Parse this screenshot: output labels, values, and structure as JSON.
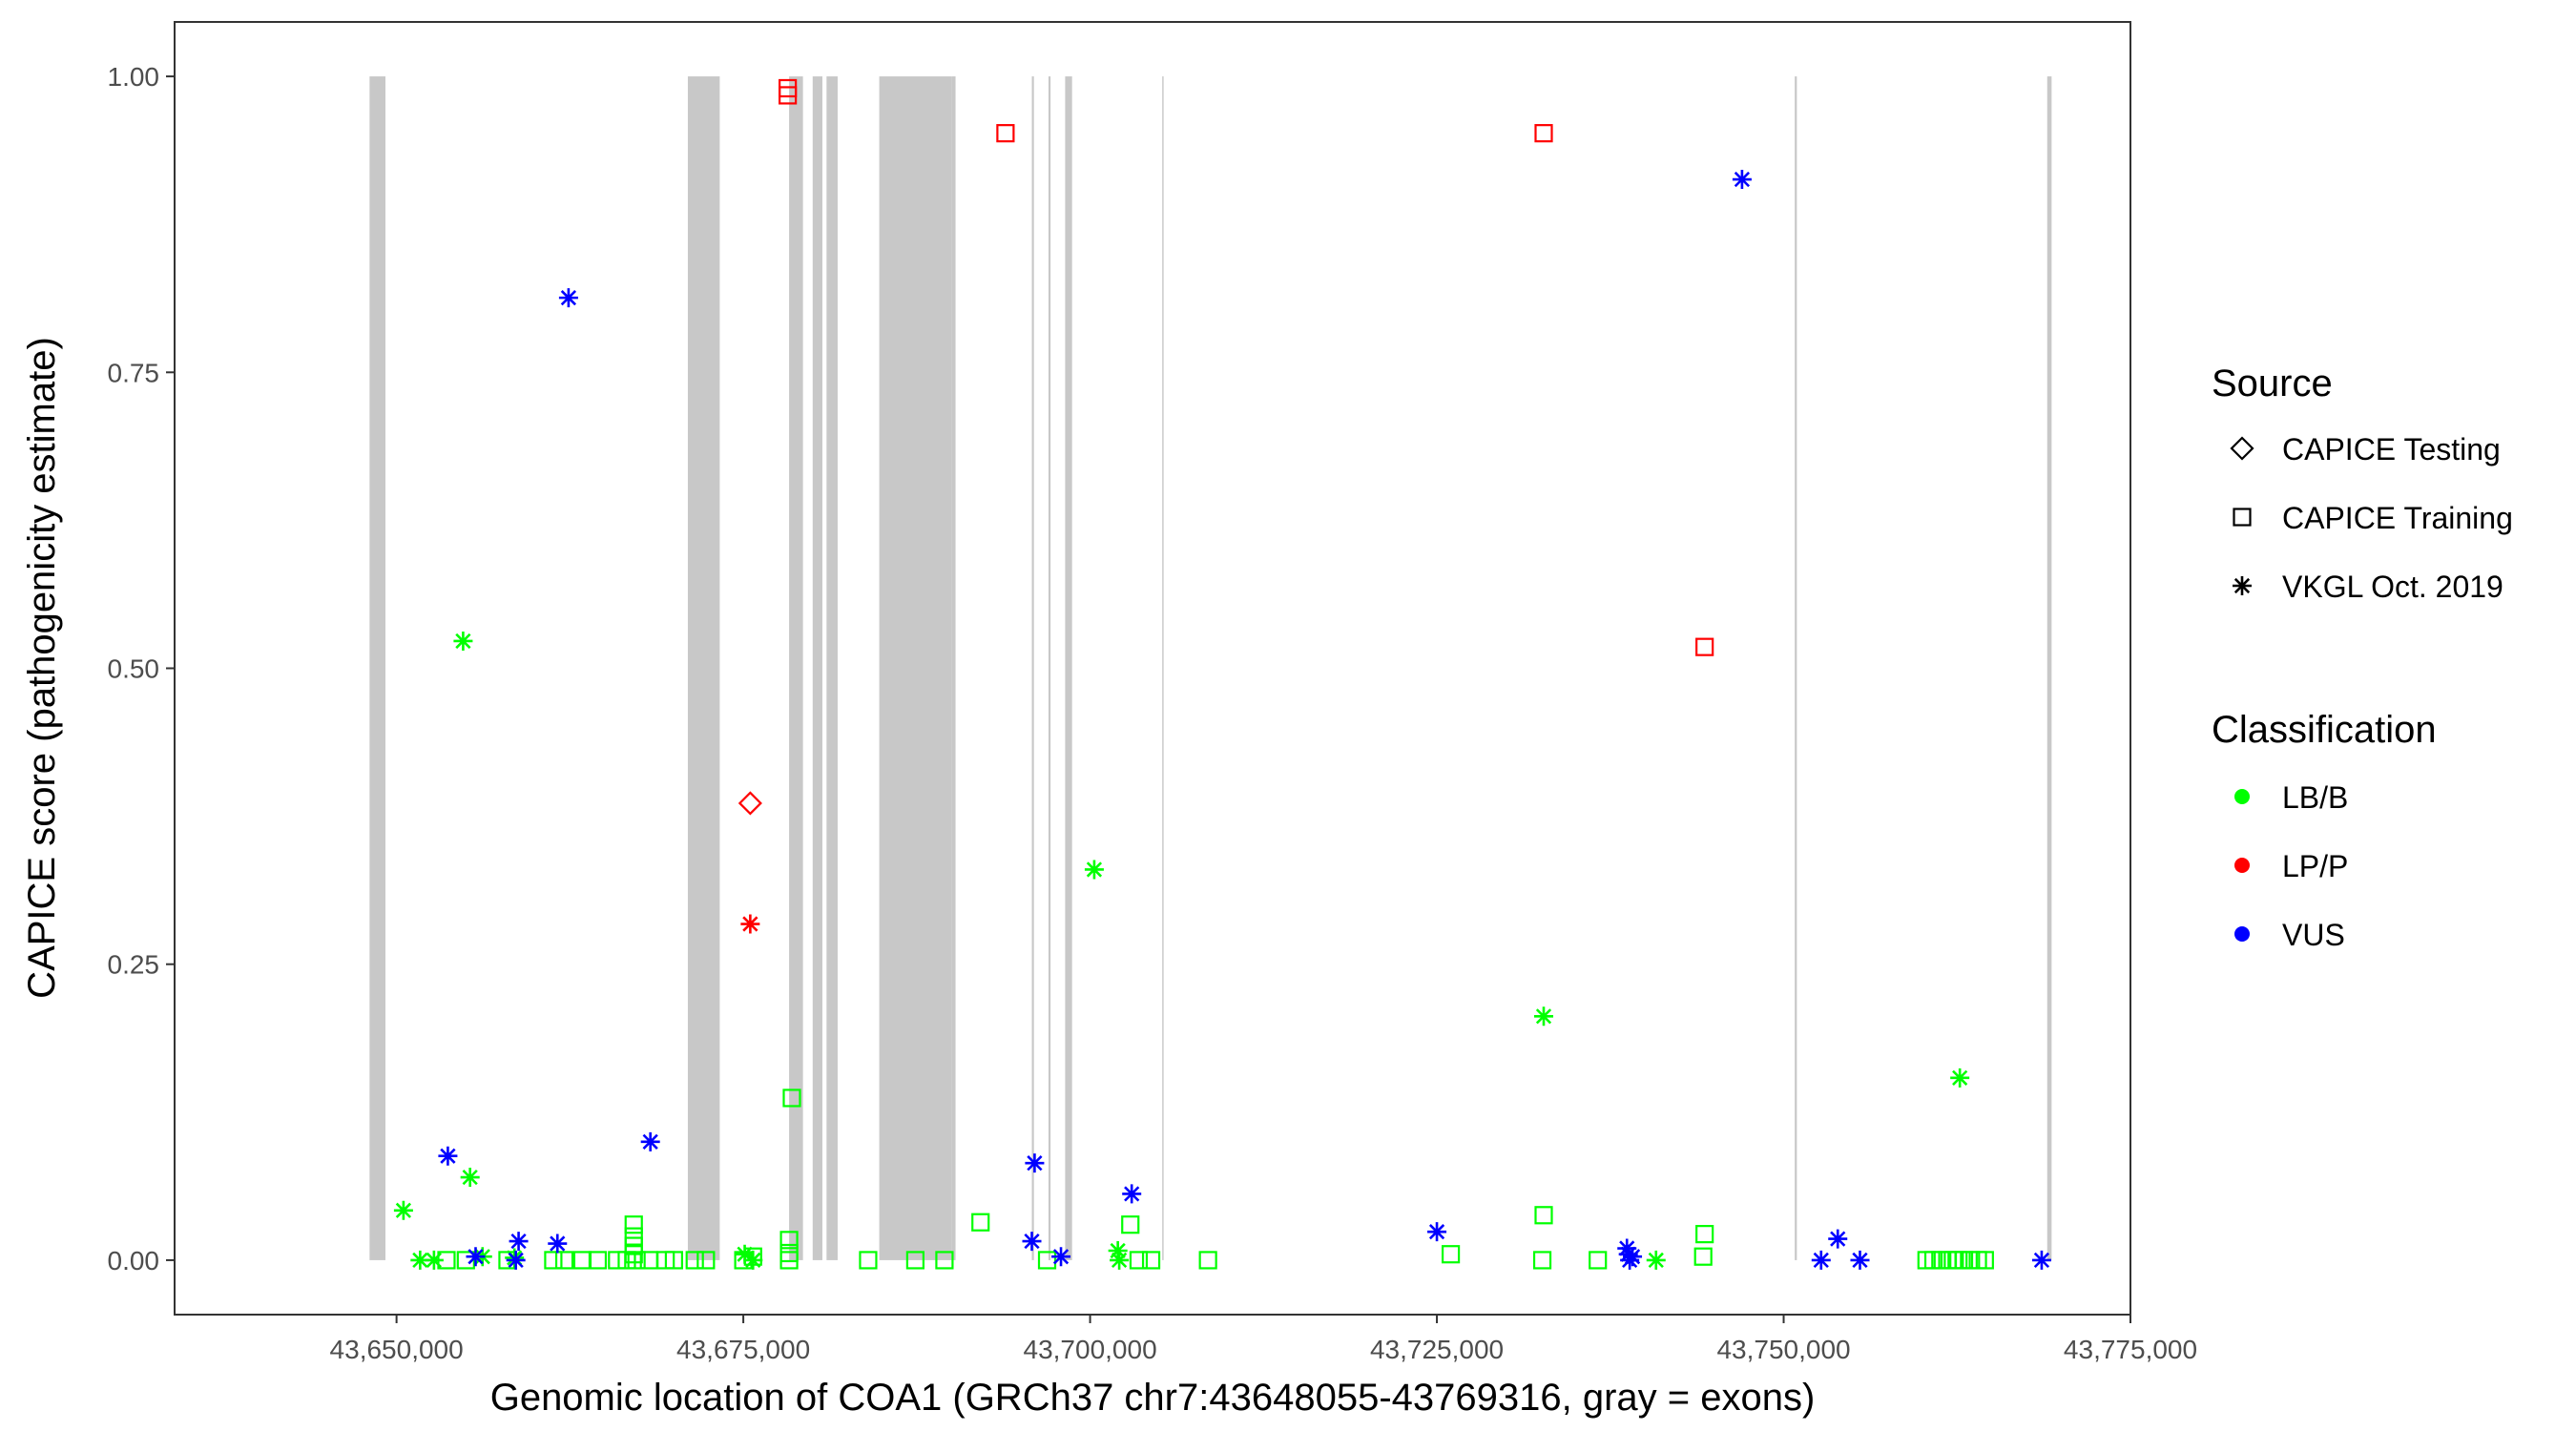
{
  "chart_data": {
    "type": "scatter",
    "xlabel": "Genomic location of COA1 (GRCh37 chr7:43648055-43769316, gray = exons)",
    "ylabel": "CAPICE score (pathogenicity estimate)",
    "xlim": [
      43634000,
      43775000
    ],
    "ylim": [
      -0.046,
      1.046
    ],
    "x_ticks": [
      43650000,
      43675000,
      43700000,
      43725000,
      43750000,
      43775000
    ],
    "x_tick_labels": [
      "43,650,000",
      "43,675,000",
      "43,700,000",
      "43,725,000",
      "43,750,000",
      "43,775,000"
    ],
    "y_ticks": [
      0,
      0.25,
      0.5,
      0.75,
      1.0
    ],
    "y_tick_labels": [
      "0.00",
      "0.25",
      "0.50",
      "0.75",
      "1.00"
    ],
    "grid": false,
    "exon_color": "#c8c8c8",
    "exons": [
      [
        43648055,
        43649200
      ],
      [
        43671000,
        43673300
      ],
      [
        43678300,
        43679300
      ],
      [
        43680000,
        43680700
      ],
      [
        43681000,
        43681800
      ],
      [
        43684800,
        43690000
      ],
      [
        43690000,
        43690300
      ],
      [
        43695800,
        43695950
      ],
      [
        43697000,
        43697150
      ],
      [
        43698200,
        43698700
      ],
      [
        43705200,
        43705300
      ],
      [
        43750800,
        43750950
      ],
      [
        43769000,
        43769316
      ]
    ],
    "legend": {
      "position": "right",
      "source_title": "Source",
      "source_items": [
        {
          "label": "CAPICE Testing",
          "shape": "diamond"
        },
        {
          "label": "CAPICE Training",
          "shape": "square"
        },
        {
          "label": "VKGL Oct. 2019",
          "shape": "asterisk"
        }
      ],
      "class_title": "Classification",
      "class_items": [
        {
          "label": "LB/B",
          "color": "#00ff00"
        },
        {
          "label": "LP/P",
          "color": "#ff0000"
        },
        {
          "label": "VUS",
          "color": "#0000ff"
        }
      ]
    },
    "series": [
      {
        "name": "LB/B",
        "color": "#00ff00",
        "shape": "asterisk",
        "source": "VKGL Oct. 2019",
        "points": [
          [
            43650500,
            0.042
          ],
          [
            43651700,
            0.0
          ],
          [
            43652700,
            0.0
          ],
          [
            43654800,
            0.523
          ],
          [
            43655300,
            0.07
          ],
          [
            43656200,
            0.003
          ],
          [
            43658500,
            0.002
          ],
          [
            43675100,
            0.005
          ],
          [
            43675700,
            0.0
          ],
          [
            43702000,
            0.008
          ],
          [
            43702100,
            0.0
          ],
          [
            43700300,
            0.33
          ],
          [
            43732700,
            0.206
          ],
          [
            43740800,
            0.0
          ],
          [
            43762700,
            0.154
          ]
        ]
      },
      {
        "name": "LB/B",
        "color": "#00ff00",
        "shape": "square",
        "source": "CAPICE Training",
        "points": [
          [
            43653600,
            0.0
          ],
          [
            43655000,
            0.0
          ],
          [
            43658000,
            0.0
          ],
          [
            43661300,
            0.0
          ],
          [
            43662100,
            0.0
          ],
          [
            43663400,
            0.0
          ],
          [
            43664500,
            0.0
          ],
          [
            43665900,
            0.0
          ],
          [
            43666600,
            0.0
          ],
          [
            43667300,
            0.0
          ],
          [
            43667100,
            0.005
          ],
          [
            43667100,
            0.012
          ],
          [
            43667100,
            0.02
          ],
          [
            43667100,
            0.03
          ],
          [
            43668200,
            0.0
          ],
          [
            43669400,
            0.0
          ],
          [
            43670000,
            0.0
          ],
          [
            43671500,
            0.0
          ],
          [
            43672300,
            0.0
          ],
          [
            43675000,
            0.0
          ],
          [
            43675700,
            0.003
          ],
          [
            43678300,
            0.0
          ],
          [
            43678300,
            0.006
          ],
          [
            43678300,
            0.017
          ],
          [
            43678500,
            0.137
          ],
          [
            43684000,
            0.0
          ],
          [
            43687400,
            0.0
          ],
          [
            43689500,
            0.0
          ],
          [
            43692100,
            0.032
          ],
          [
            43696900,
            0.0
          ],
          [
            43702900,
            0.03
          ],
          [
            43703500,
            0.0
          ],
          [
            43704400,
            0.0
          ],
          [
            43708500,
            0.0
          ],
          [
            43726000,
            0.005
          ],
          [
            43732600,
            0.0
          ],
          [
            43732700,
            0.038
          ],
          [
            43736600,
            0.0
          ],
          [
            43744200,
            0.003
          ],
          [
            43744300,
            0.022
          ],
          [
            43760300,
            0.0
          ],
          [
            43760800,
            0.0
          ],
          [
            43761300,
            0.0
          ],
          [
            43761800,
            0.0
          ],
          [
            43762200,
            0.0
          ],
          [
            43762600,
            0.0
          ],
          [
            43763000,
            0.0
          ],
          [
            43763500,
            0.0
          ],
          [
            43764000,
            0.0
          ],
          [
            43764500,
            0.0
          ]
        ]
      },
      {
        "name": "LP/P",
        "color": "#ff0000",
        "shape": "square",
        "source": "CAPICE Training",
        "points": [
          [
            43678200,
            0.984
          ],
          [
            43678200,
            0.99
          ],
          [
            43693900,
            0.952
          ],
          [
            43732700,
            0.952
          ],
          [
            43744300,
            0.518
          ]
        ]
      },
      {
        "name": "LP/P",
        "color": "#ff0000",
        "shape": "diamond",
        "source": "CAPICE Testing",
        "points": [
          [
            43675500,
            0.386
          ]
        ]
      },
      {
        "name": "LP/P",
        "color": "#ff0000",
        "shape": "asterisk",
        "source": "VKGL Oct. 2019",
        "points": [
          [
            43675500,
            0.284
          ]
        ]
      },
      {
        "name": "VUS",
        "color": "#0000ff",
        "shape": "asterisk",
        "source": "VKGL Oct. 2019",
        "points": [
          [
            43653700,
            0.088
          ],
          [
            43655700,
            0.003
          ],
          [
            43658600,
            0.0
          ],
          [
            43658800,
            0.016
          ],
          [
            43661600,
            0.014
          ],
          [
            43662400,
            0.813
          ],
          [
            43668300,
            0.1
          ],
          [
            43695800,
            0.016
          ],
          [
            43696000,
            0.082
          ],
          [
            43697900,
            0.003
          ],
          [
            43703000,
            0.056
          ],
          [
            43725000,
            0.024
          ],
          [
            43738700,
            0.01
          ],
          [
            43738800,
            0.005
          ],
          [
            43739100,
            0.003
          ],
          [
            43738900,
            0.0
          ],
          [
            43747000,
            0.913
          ],
          [
            43752700,
            0.0
          ],
          [
            43753900,
            0.018
          ],
          [
            43755500,
            0.0
          ],
          [
            43768600,
            0.0
          ]
        ]
      }
    ]
  }
}
